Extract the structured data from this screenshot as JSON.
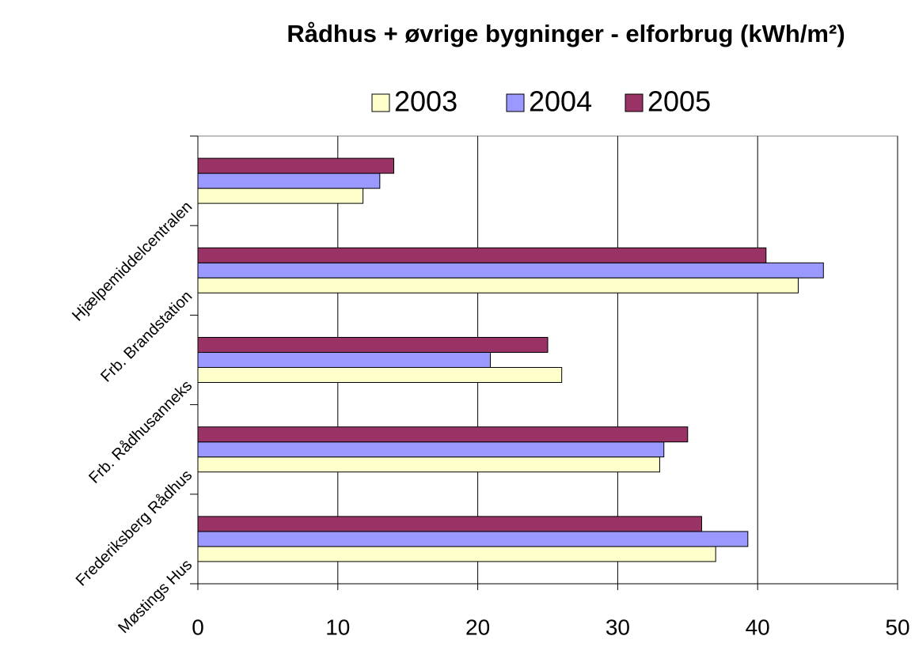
{
  "chart_data": {
    "type": "hbar",
    "title": "Rådhus + øvrige bygninger - elforbrug (kWh/m²)",
    "categories": [
      "Hjælpemiddelcentralen",
      "Frb. Brandstation",
      "Frb. Rådhusanneks",
      "Frederiksberg Rådhus",
      "Møstings Hus"
    ],
    "series": [
      {
        "name": "2003",
        "color": "#ffffcc",
        "values": [
          11.8,
          42.9,
          26.0,
          33.0,
          37.0
        ]
      },
      {
        "name": "2004",
        "color": "#9999ff",
        "values": [
          13.0,
          44.7,
          20.9,
          33.3,
          39.3
        ]
      },
      {
        "name": "2005",
        "color": "#993366",
        "values": [
          14.0,
          40.6,
          25.0,
          35.0,
          36.0
        ]
      }
    ],
    "xlim": [
      0,
      50
    ],
    "xticks": [
      0,
      10,
      20,
      30,
      40,
      50
    ],
    "grid": true,
    "legend": "top"
  }
}
